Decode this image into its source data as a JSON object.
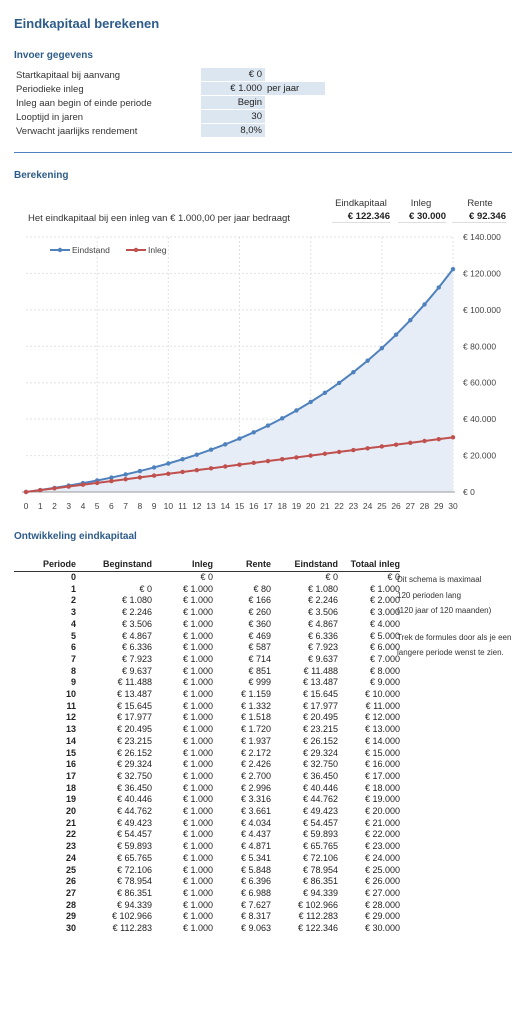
{
  "title": "Eindkapitaal berekenen",
  "input": {
    "heading": "Invoer gegevens",
    "rows": [
      {
        "label": "Startkapitaal bij aanvang",
        "value": "€ 0",
        "unit": ""
      },
      {
        "label": "Periodieke inleg",
        "value": "€ 1.000",
        "unit": "per jaar"
      },
      {
        "label": "Inleg aan begin of einde periode",
        "value": "Begin",
        "unit": ""
      },
      {
        "label": "Looptijd in jaren",
        "value": "30",
        "unit": ""
      },
      {
        "label": "Verwacht jaarlijks rendement",
        "value": "8,0%",
        "unit": ""
      }
    ]
  },
  "calc": {
    "heading": "Berekening",
    "sentence": "Het eindkapitaal bij een inleg van € 1.000,00 per jaar bedraagt",
    "headers": [
      "Eindkapitaal",
      "Inleg",
      "Rente"
    ],
    "values": [
      "€ 122.346",
      "€ 30.000",
      "€ 92.346"
    ]
  },
  "chart_data": {
    "type": "line",
    "x": [
      0,
      1,
      2,
      3,
      4,
      5,
      6,
      7,
      8,
      9,
      10,
      11,
      12,
      13,
      14,
      15,
      16,
      17,
      18,
      19,
      20,
      21,
      22,
      23,
      24,
      25,
      26,
      27,
      28,
      29,
      30
    ],
    "series": [
      {
        "name": "Eindstand",
        "color": "#4f81bd",
        "values": [
          0,
          1080,
          2246,
          3506,
          4867,
          6336,
          7923,
          9637,
          11488,
          13487,
          15645,
          17977,
          20495,
          23215,
          26152,
          29324,
          32750,
          36450,
          40446,
          44762,
          49423,
          54457,
          59893,
          65765,
          72106,
          78954,
          86351,
          94339,
          102966,
          112283,
          122346
        ]
      },
      {
        "name": "Inleg",
        "color": "#c0504d",
        "values": [
          0,
          1000,
          2000,
          3000,
          4000,
          5000,
          6000,
          7000,
          8000,
          9000,
          10000,
          11000,
          12000,
          13000,
          14000,
          15000,
          16000,
          17000,
          18000,
          19000,
          20000,
          21000,
          22000,
          23000,
          24000,
          25000,
          26000,
          27000,
          28000,
          29000,
          30000
        ]
      }
    ],
    "ylim": [
      0,
      140000
    ],
    "yticks": [
      "€ 0",
      "€ 20.000",
      "€ 40.000",
      "€ 60.000",
      "€ 80.000",
      "€ 100.000",
      "€ 120.000",
      "€ 140.000"
    ],
    "grid": true,
    "legend": "top-left",
    "area_fill": "#e6edf7"
  },
  "table": {
    "heading": "Ontwikkeling eindkapitaal",
    "headers": [
      "Periode",
      "Beginstand",
      "Inleg",
      "Rente",
      "Eindstand",
      "Totaal inleg"
    ],
    "rows": [
      [
        "0",
        "",
        "€ 0",
        "",
        "€ 0",
        "€ 0"
      ],
      [
        "1",
        "€ 0",
        "€ 1.000",
        "€ 80",
        "€ 1.080",
        "€ 1.000"
      ],
      [
        "2",
        "€ 1.080",
        "€ 1.000",
        "€ 166",
        "€ 2.246",
        "€ 2.000"
      ],
      [
        "3",
        "€ 2.246",
        "€ 1.000",
        "€ 260",
        "€ 3.506",
        "€ 3.000"
      ],
      [
        "4",
        "€ 3.506",
        "€ 1.000",
        "€ 360",
        "€ 4.867",
        "€ 4.000"
      ],
      [
        "5",
        "€ 4.867",
        "€ 1.000",
        "€ 469",
        "€ 6.336",
        "€ 5.000"
      ],
      [
        "6",
        "€ 6.336",
        "€ 1.000",
        "€ 587",
        "€ 7.923",
        "€ 6.000"
      ],
      [
        "7",
        "€ 7.923",
        "€ 1.000",
        "€ 714",
        "€ 9.637",
        "€ 7.000"
      ],
      [
        "8",
        "€ 9.637",
        "€ 1.000",
        "€ 851",
        "€ 11.488",
        "€ 8.000"
      ],
      [
        "9",
        "€ 11.488",
        "€ 1.000",
        "€ 999",
        "€ 13.487",
        "€ 9.000"
      ],
      [
        "10",
        "€ 13.487",
        "€ 1.000",
        "€ 1.159",
        "€ 15.645",
        "€ 10.000"
      ],
      [
        "11",
        "€ 15.645",
        "€ 1.000",
        "€ 1.332",
        "€ 17.977",
        "€ 11.000"
      ],
      [
        "12",
        "€ 17.977",
        "€ 1.000",
        "€ 1.518",
        "€ 20.495",
        "€ 12.000"
      ],
      [
        "13",
        "€ 20.495",
        "€ 1.000",
        "€ 1.720",
        "€ 23.215",
        "€ 13.000"
      ],
      [
        "14",
        "€ 23.215",
        "€ 1.000",
        "€ 1.937",
        "€ 26.152",
        "€ 14.000"
      ],
      [
        "15",
        "€ 26.152",
        "€ 1.000",
        "€ 2.172",
        "€ 29.324",
        "€ 15.000"
      ],
      [
        "16",
        "€ 29.324",
        "€ 1.000",
        "€ 2.426",
        "€ 32.750",
        "€ 16.000"
      ],
      [
        "17",
        "€ 32.750",
        "€ 1.000",
        "€ 2.700",
        "€ 36.450",
        "€ 17.000"
      ],
      [
        "18",
        "€ 36.450",
        "€ 1.000",
        "€ 2.996",
        "€ 40.446",
        "€ 18.000"
      ],
      [
        "19",
        "€ 40.446",
        "€ 1.000",
        "€ 3.316",
        "€ 44.762",
        "€ 19.000"
      ],
      [
        "20",
        "€ 44.762",
        "€ 1.000",
        "€ 3.661",
        "€ 49.423",
        "€ 20.000"
      ],
      [
        "21",
        "€ 49.423",
        "€ 1.000",
        "€ 4.034",
        "€ 54.457",
        "€ 21.000"
      ],
      [
        "22",
        "€ 54.457",
        "€ 1.000",
        "€ 4.437",
        "€ 59.893",
        "€ 22.000"
      ],
      [
        "23",
        "€ 59.893",
        "€ 1.000",
        "€ 4.871",
        "€ 65.765",
        "€ 23.000"
      ],
      [
        "24",
        "€ 65.765",
        "€ 1.000",
        "€ 5.341",
        "€ 72.106",
        "€ 24.000"
      ],
      [
        "25",
        "€ 72.106",
        "€ 1.000",
        "€ 5.848",
        "€ 78.954",
        "€ 25.000"
      ],
      [
        "26",
        "€ 78.954",
        "€ 1.000",
        "€ 6.396",
        "€ 86.351",
        "€ 26.000"
      ],
      [
        "27",
        "€ 86.351",
        "€ 1.000",
        "€ 6.988",
        "€ 94.339",
        "€ 27.000"
      ],
      [
        "28",
        "€ 94.339",
        "€ 1.000",
        "€ 7.627",
        "€ 102.966",
        "€ 28.000"
      ],
      [
        "29",
        "€ 102.966",
        "€ 1.000",
        "€ 8.317",
        "€ 112.283",
        "€ 29.000"
      ],
      [
        "30",
        "€ 112.283",
        "€ 1.000",
        "€ 9.063",
        "€ 122.346",
        "€ 30.000"
      ]
    ],
    "notes": [
      "Dit schema is maximaal",
      "120 perioden lang",
      "(120 jaar of 120 maanden)",
      "",
      "Trek de formules door als je een",
      "langere periode wenst te zien."
    ]
  }
}
